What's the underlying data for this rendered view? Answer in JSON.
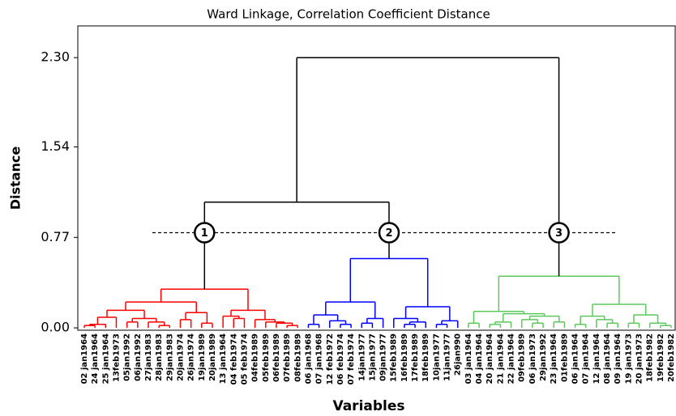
{
  "chart_data": {
    "type": "dendrogram",
    "title": "Ward Linkage, Correlation Coefficient Distance",
    "x_label": "Variables",
    "y_label": "Distance",
    "ylim": [
      -0.02,
      2.57
    ],
    "yticks": [
      {
        "value": 0,
        "label": "0.00"
      },
      0.77,
      1.54,
      {
        "value": 2.3,
        "label": "2.30"
      }
    ],
    "leaves": [
      "02 jan1964",
      "24 jan1964",
      "25 jan1964",
      "13feb1973",
      "05jan1992",
      "06jan1992",
      "27jan1983",
      "28jan1983",
      "29jan1983",
      "20jan1974",
      "26jan1974",
      "19jan1989",
      "20jan1989",
      "13 jan1964",
      "04 feb1974",
      "05 feb1974",
      "04feb1989",
      "05feb1989",
      "06feb1989",
      "07feb1989",
      "08feb1989",
      "06 jan1968",
      "07 jan1968",
      "12 feb1972",
      "06 feb1974",
      "07 feb1974",
      "14jan1977",
      "15jan1977",
      "09jan1977",
      "15feb1989",
      "16feb1989",
      "17feb1989",
      "18feb1989",
      "10jan1977",
      "11jan1977",
      "26jan990",
      "03 jan1964",
      "04 jan1964",
      "20 jan1964",
      "21 jan1964",
      "22 jan1964",
      "09feb1989",
      "06 jan1973",
      "29jan1992",
      "23 jan1964",
      "01feb1989",
      "06 jan1964",
      "07 jan1964",
      "12 jan1964",
      "08 jan1964",
      "09 jan1964",
      "19 jan1973",
      "20 jan1973",
      "18feb1982",
      "19feb1982",
      "20feb1982"
    ],
    "merges": [
      [
        0,
        1,
        0.02
      ],
      [
        56,
        2,
        0.03
      ],
      [
        4,
        5,
        0.05
      ],
      [
        7,
        8,
        0.02
      ],
      [
        6,
        59,
        0.05
      ],
      [
        58,
        60,
        0.08
      ],
      [
        57,
        3,
        0.09
      ],
      [
        62,
        61,
        0.15
      ],
      [
        9,
        10,
        0.07
      ],
      [
        11,
        12,
        0.04
      ],
      [
        64,
        65,
        0.13
      ],
      [
        63,
        66,
        0.22
      ],
      [
        14,
        15,
        0.08
      ],
      [
        13,
        68,
        0.1
      ],
      [
        19,
        20,
        0.02
      ],
      [
        18,
        70,
        0.04
      ],
      [
        17,
        71,
        0.05
      ],
      [
        16,
        72,
        0.07
      ],
      [
        69,
        73,
        0.15
      ],
      [
        67,
        74,
        0.33
      ],
      [
        21,
        22,
        0.03
      ],
      [
        24,
        25,
        0.03
      ],
      [
        23,
        77,
        0.06
      ],
      [
        76,
        78,
        0.11
      ],
      [
        26,
        27,
        0.04
      ],
      [
        80,
        28,
        0.08
      ],
      [
        79,
        81,
        0.22
      ],
      [
        30,
        31,
        0.03
      ],
      [
        83,
        32,
        0.05
      ],
      [
        29,
        84,
        0.08
      ],
      [
        33,
        34,
        0.03
      ],
      [
        86,
        35,
        0.06
      ],
      [
        85,
        87,
        0.18
      ],
      [
        82,
        88,
        0.59
      ],
      [
        36,
        37,
        0.04
      ],
      [
        38,
        39,
        0.03
      ],
      [
        91,
        40,
        0.05
      ],
      [
        42,
        43,
        0.04
      ],
      [
        41,
        93,
        0.07
      ],
      [
        44,
        45,
        0.05
      ],
      [
        94,
        95,
        0.1
      ],
      [
        92,
        96,
        0.12
      ],
      [
        90,
        97,
        0.14
      ],
      [
        46,
        47,
        0.03
      ],
      [
        49,
        50,
        0.04
      ],
      [
        48,
        100,
        0.07
      ],
      [
        99,
        101,
        0.1
      ],
      [
        51,
        52,
        0.04
      ],
      [
        54,
        55,
        0.02
      ],
      [
        53,
        104,
        0.04
      ],
      [
        103,
        105,
        0.11
      ],
      [
        102,
        106,
        0.2
      ],
      [
        98,
        107,
        0.44
      ],
      [
        75,
        89,
        1.07
      ],
      [
        109,
        108,
        2.3
      ]
    ],
    "cut_height": 0.81,
    "clusters": [
      {
        "label": "1",
        "root": 75,
        "color": "#ff0000"
      },
      {
        "label": "2",
        "root": 89,
        "color": "#0000ff"
      },
      {
        "label": "3",
        "root": 108,
        "color": "#5cc85c"
      }
    ],
    "link_color": "#000000"
  }
}
